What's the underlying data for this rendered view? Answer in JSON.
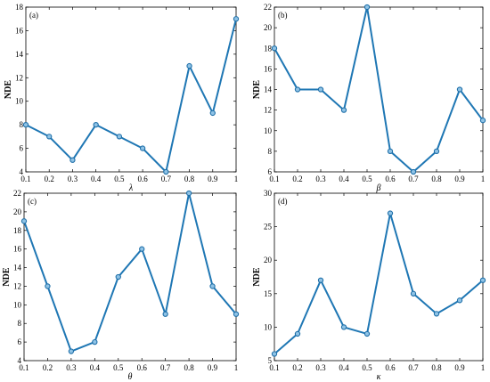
{
  "colors": {
    "line": "#1f77b4",
    "marker_edge": "#1f6fa8",
    "axes": "#000000"
  },
  "chart_data": [
    {
      "type": "line",
      "panel_label": "(a)",
      "xlabel": "λ",
      "ylabel": "NDE",
      "xlim": [
        0.1,
        1
      ],
      "ylim": [
        4,
        18
      ],
      "xticks": [
        0.1,
        0.2,
        0.3,
        0.4,
        0.5,
        0.6,
        0.7,
        0.8,
        0.9,
        1
      ],
      "xtick_labels": [
        "0.1",
        "0.2",
        "0.3",
        "0.4",
        "0.5",
        "0.6",
        "0.7",
        "0.8",
        "0.9",
        "1"
      ],
      "yticks": [
        4,
        6,
        8,
        10,
        12,
        14,
        16,
        18
      ],
      "ytick_labels": [
        "4",
        "6",
        "8",
        "10",
        "12",
        "14",
        "16",
        "18"
      ],
      "x": [
        0.1,
        0.2,
        0.3,
        0.4,
        0.5,
        0.6,
        0.7,
        0.8,
        0.9,
        1
      ],
      "y": [
        8,
        7,
        5,
        8,
        7,
        6,
        4,
        13,
        9,
        17
      ],
      "grid": false
    },
    {
      "type": "line",
      "panel_label": "(b)",
      "xlabel": "β",
      "ylabel": "NDE",
      "xlim": [
        0.1,
        1
      ],
      "ylim": [
        6,
        22
      ],
      "xticks": [
        0.1,
        0.2,
        0.3,
        0.4,
        0.5,
        0.6,
        0.7,
        0.8,
        0.9,
        1
      ],
      "xtick_labels": [
        "0.1",
        "0.2",
        "0.3",
        "0.4",
        "0.5",
        "0.6",
        "0.7",
        "0.8",
        "0.9",
        "1"
      ],
      "yticks": [
        6,
        8,
        10,
        12,
        14,
        16,
        18,
        20,
        22
      ],
      "ytick_labels": [
        "6",
        "8",
        "10",
        "12",
        "14",
        "16",
        "18",
        "20",
        "22"
      ],
      "x": [
        0.1,
        0.2,
        0.3,
        0.4,
        0.5,
        0.6,
        0.7,
        0.8,
        0.9,
        1
      ],
      "y": [
        18,
        14,
        14,
        12,
        22,
        8,
        6,
        8,
        14,
        11
      ],
      "grid": false
    },
    {
      "type": "line",
      "panel_label": "(c)",
      "xlabel": "θ",
      "ylabel": "NDE",
      "xlim": [
        0.1,
        1
      ],
      "ylim": [
        4,
        22
      ],
      "xticks": [
        0.1,
        0.2,
        0.3,
        0.4,
        0.5,
        0.6,
        0.7,
        0.8,
        0.9,
        1
      ],
      "xtick_labels": [
        "0.1",
        "0.2",
        "0.3",
        "0.4",
        "0.5",
        "0.6",
        "0.7",
        "0.8",
        "0.9",
        "1"
      ],
      "yticks": [
        4,
        6,
        8,
        10,
        12,
        14,
        16,
        18,
        20,
        22
      ],
      "ytick_labels": [
        "4",
        "6",
        "8",
        "10",
        "12",
        "14",
        "16",
        "18",
        "20",
        "22"
      ],
      "x": [
        0.1,
        0.2,
        0.3,
        0.4,
        0.5,
        0.6,
        0.7,
        0.8,
        0.9,
        1
      ],
      "y": [
        19,
        12,
        5,
        6,
        13,
        16,
        9,
        22,
        12,
        9
      ],
      "grid": false
    },
    {
      "type": "line",
      "panel_label": "(d)",
      "xlabel": "κ",
      "ylabel": "NDE",
      "xlim": [
        0.1,
        1
      ],
      "ylim": [
        5,
        30
      ],
      "xticks": [
        0.1,
        0.2,
        0.3,
        0.4,
        0.5,
        0.6,
        0.7,
        0.8,
        0.9,
        1
      ],
      "xtick_labels": [
        "0.1",
        "0.2",
        "0.3",
        "0.4",
        "0.5",
        "0.6",
        "0.7",
        "0.8",
        "0.9",
        "1"
      ],
      "yticks": [
        5,
        10,
        15,
        20,
        25,
        30
      ],
      "ytick_labels": [
        "5",
        "10",
        "15",
        "20",
        "25",
        "30"
      ],
      "x": [
        0.1,
        0.2,
        0.3,
        0.4,
        0.5,
        0.6,
        0.7,
        0.8,
        0.9,
        1
      ],
      "y": [
        6,
        9,
        17,
        10,
        9,
        27,
        15,
        12,
        14,
        17
      ],
      "grid": false
    }
  ]
}
